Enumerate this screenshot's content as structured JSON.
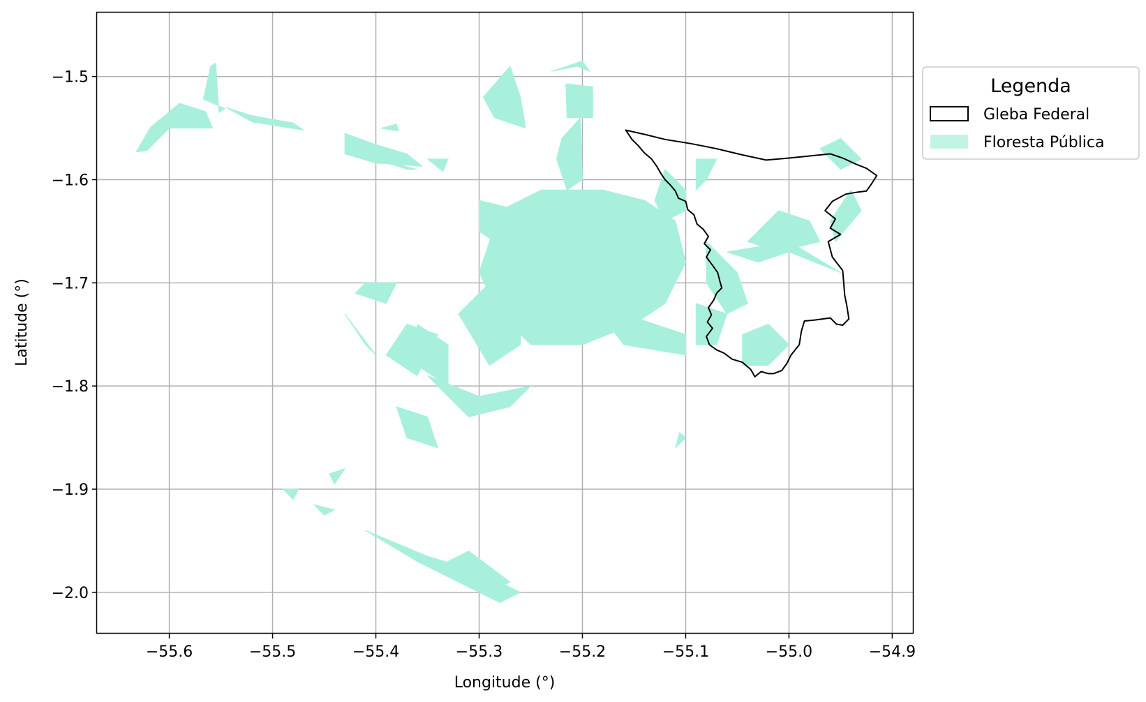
{
  "map": {
    "xlabel": "Longitude (°)",
    "ylabel": "Latitude (°)",
    "x_ticks": [
      -55.6,
      -55.5,
      -55.4,
      -55.3,
      -55.2,
      -55.1,
      -55.0,
      -54.9
    ],
    "y_ticks": [
      -1.5,
      -1.6,
      -1.7,
      -1.8,
      -1.9,
      -2.0
    ],
    "x_tick_labels": [
      "−55.6",
      "−55.5",
      "−55.4",
      "−55.3",
      "−55.2",
      "−55.1",
      "−55.0",
      "−54.9"
    ],
    "y_tick_labels": [
      "−1.5",
      "−1.6",
      "−1.7",
      "−1.8",
      "−1.9",
      "−2.0"
    ],
    "xlim": [
      -55.67,
      -54.88
    ],
    "ylim": [
      -2.04,
      -1.438
    ],
    "grid": true,
    "colors": {
      "forest": "#a8f0dc",
      "boundary": "#000000",
      "grid": "#b0b0b0"
    },
    "legend": {
      "title": "Legenda",
      "placement": "outside-right-top",
      "items": [
        {
          "label": "Gleba Federal",
          "type": "outline"
        },
        {
          "label": "Floresta Pública",
          "type": "fill"
        }
      ]
    },
    "layers": {
      "gleba_federal": [
        [
          -55.158,
          -1.552
        ],
        [
          -55.14,
          -1.556
        ],
        [
          -55.12,
          -1.561
        ],
        [
          -55.095,
          -1.565
        ],
        [
          -55.07,
          -1.57
        ],
        [
          -55.045,
          -1.576
        ],
        [
          -55.022,
          -1.581
        ],
        [
          -55.0,
          -1.579
        ],
        [
          -54.98,
          -1.577
        ],
        [
          -54.96,
          -1.575
        ],
        [
          -54.948,
          -1.579
        ],
        [
          -54.935,
          -1.585
        ],
        [
          -54.925,
          -1.589
        ],
        [
          -54.915,
          -1.596
        ],
        [
          -54.92,
          -1.604
        ],
        [
          -54.925,
          -1.611
        ],
        [
          -54.933,
          -1.612
        ],
        [
          -54.945,
          -1.614
        ],
        [
          -54.958,
          -1.621
        ],
        [
          -54.965,
          -1.63
        ],
        [
          -54.955,
          -1.638
        ],
        [
          -54.96,
          -1.647
        ],
        [
          -54.95,
          -1.653
        ],
        [
          -54.962,
          -1.66
        ],
        [
          -54.958,
          -1.675
        ],
        [
          -54.948,
          -1.688
        ],
        [
          -54.947,
          -1.7
        ],
        [
          -54.946,
          -1.712
        ],
        [
          -54.944,
          -1.722
        ],
        [
          -54.942,
          -1.735
        ],
        [
          -54.948,
          -1.741
        ],
        [
          -54.954,
          -1.74
        ],
        [
          -54.96,
          -1.734
        ],
        [
          -54.975,
          -1.736
        ],
        [
          -54.985,
          -1.737
        ],
        [
          -54.988,
          -1.747
        ],
        [
          -54.99,
          -1.76
        ],
        [
          -54.998,
          -1.77
        ],
        [
          -55.002,
          -1.778
        ],
        [
          -55.007,
          -1.785
        ],
        [
          -55.015,
          -1.788
        ],
        [
          -55.02,
          -1.788
        ],
        [
          -55.027,
          -1.786
        ],
        [
          -55.033,
          -1.791
        ],
        [
          -55.037,
          -1.784
        ],
        [
          -55.045,
          -1.777
        ],
        [
          -55.055,
          -1.774
        ],
        [
          -55.063,
          -1.768
        ],
        [
          -55.07,
          -1.765
        ],
        [
          -55.077,
          -1.76
        ],
        [
          -55.08,
          -1.752
        ],
        [
          -55.074,
          -1.744
        ],
        [
          -55.079,
          -1.738
        ],
        [
          -55.075,
          -1.731
        ],
        [
          -55.078,
          -1.724
        ],
        [
          -55.073,
          -1.717
        ],
        [
          -55.07,
          -1.71
        ],
        [
          -55.065,
          -1.705
        ],
        [
          -55.067,
          -1.698
        ],
        [
          -55.069,
          -1.69
        ],
        [
          -55.074,
          -1.683
        ],
        [
          -55.08,
          -1.675
        ],
        [
          -55.076,
          -1.668
        ],
        [
          -55.082,
          -1.662
        ],
        [
          -55.078,
          -1.655
        ],
        [
          -55.083,
          -1.648
        ],
        [
          -55.089,
          -1.643
        ],
        [
          -55.092,
          -1.634
        ],
        [
          -55.098,
          -1.629
        ],
        [
          -55.1,
          -1.621
        ],
        [
          -55.107,
          -1.618
        ],
        [
          -55.11,
          -1.611
        ],
        [
          -55.115,
          -1.605
        ],
        [
          -55.12,
          -1.6
        ],
        [
          -55.124,
          -1.594
        ],
        [
          -55.128,
          -1.587
        ],
        [
          -55.133,
          -1.58
        ],
        [
          -55.14,
          -1.574
        ],
        [
          -55.146,
          -1.567
        ],
        [
          -55.152,
          -1.561
        ],
        [
          -55.158,
          -1.552
        ]
      ],
      "floresta_publica": [
        [
          [
            -55.632,
            -1.573
          ],
          [
            -55.618,
            -1.549
          ],
          [
            -55.59,
            -1.526
          ],
          [
            -55.565,
            -1.534
          ],
          [
            -55.558,
            -1.55
          ],
          [
            -55.6,
            -1.55
          ],
          [
            -55.622,
            -1.572
          ]
        ],
        [
          [
            -55.567,
            -1.522
          ],
          [
            -55.56,
            -1.49
          ],
          [
            -55.555,
            -1.487
          ],
          [
            -55.552,
            -1.535
          ],
          [
            -55.546,
            -1.531
          ]
        ],
        [
          [
            -55.545,
            -1.53
          ],
          [
            -55.52,
            -1.538
          ],
          [
            -55.48,
            -1.545
          ],
          [
            -55.47,
            -1.552
          ],
          [
            -55.52,
            -1.544
          ]
        ],
        [
          [
            -55.43,
            -1.555
          ],
          [
            -55.4,
            -1.566
          ],
          [
            -55.37,
            -1.575
          ],
          [
            -55.355,
            -1.587
          ],
          [
            -55.4,
            -1.584
          ],
          [
            -55.43,
            -1.575
          ]
        ],
        [
          [
            -55.4,
            -1.58
          ],
          [
            -55.37,
            -1.59
          ],
          [
            -55.36,
            -1.59
          ]
        ],
        [
          [
            -55.296,
            -1.52
          ],
          [
            -55.27,
            -1.49
          ],
          [
            -55.26,
            -1.52
          ],
          [
            -55.255,
            -1.55
          ],
          [
            -55.285,
            -1.54
          ]
        ],
        [
          [
            -55.23,
            -1.495
          ],
          [
            -55.2,
            -1.485
          ],
          [
            -55.193,
            -1.495
          ],
          [
            -55.205,
            -1.49
          ]
        ],
        [
          [
            -55.216,
            -1.507
          ],
          [
            -55.19,
            -1.51
          ],
          [
            -55.19,
            -1.54
          ],
          [
            -55.215,
            -1.54
          ]
        ],
        [
          [
            -55.22,
            -1.56
          ],
          [
            -55.202,
            -1.54
          ],
          [
            -55.2,
            -1.6
          ],
          [
            -55.215,
            -1.61
          ],
          [
            -55.225,
            -1.58
          ]
        ],
        [
          [
            -55.28,
            -1.63
          ],
          [
            -55.24,
            -1.61
          ],
          [
            -55.18,
            -1.61
          ],
          [
            -55.14,
            -1.62
          ],
          [
            -55.11,
            -1.64
          ],
          [
            -55.1,
            -1.68
          ],
          [
            -55.12,
            -1.72
          ],
          [
            -55.15,
            -1.74
          ],
          [
            -55.2,
            -1.76
          ],
          [
            -55.25,
            -1.76
          ],
          [
            -55.28,
            -1.73
          ],
          [
            -55.3,
            -1.69
          ]
        ],
        [
          [
            -55.19,
            -1.72
          ],
          [
            -55.1,
            -1.75
          ],
          [
            -55.1,
            -1.77
          ],
          [
            -55.16,
            -1.76
          ]
        ],
        [
          [
            -55.3,
            -1.62
          ],
          [
            -55.26,
            -1.63
          ],
          [
            -55.24,
            -1.66
          ],
          [
            -55.27,
            -1.67
          ],
          [
            -55.3,
            -1.65
          ]
        ],
        [
          [
            -55.32,
            -1.73
          ],
          [
            -55.29,
            -1.7
          ],
          [
            -55.26,
            -1.72
          ],
          [
            -55.26,
            -1.76
          ],
          [
            -55.29,
            -1.78
          ]
        ],
        [
          [
            -55.35,
            -1.79
          ],
          [
            -55.3,
            -1.81
          ],
          [
            -55.25,
            -1.8
          ],
          [
            -55.27,
            -1.82
          ],
          [
            -55.31,
            -1.83
          ]
        ],
        [
          [
            -55.38,
            -1.82
          ],
          [
            -55.35,
            -1.83
          ],
          [
            -55.34,
            -1.86
          ],
          [
            -55.37,
            -1.85
          ]
        ],
        [
          [
            -55.36,
            -1.74
          ],
          [
            -55.33,
            -1.76
          ],
          [
            -55.33,
            -1.8
          ],
          [
            -55.36,
            -1.78
          ]
        ],
        [
          [
            -55.39,
            -1.77
          ],
          [
            -55.37,
            -1.74
          ],
          [
            -55.34,
            -1.75
          ],
          [
            -55.36,
            -1.79
          ]
        ],
        [
          [
            -55.42,
            -1.71
          ],
          [
            -55.39,
            -1.72
          ],
          [
            -55.38,
            -1.7
          ],
          [
            -55.41,
            -1.7
          ]
        ],
        [
          [
            -55.43,
            -1.73
          ],
          [
            -55.41,
            -1.76
          ],
          [
            -55.4,
            -1.77
          ]
        ],
        [
          [
            -55.08,
            -1.66
          ],
          [
            -55.05,
            -1.69
          ],
          [
            -55.04,
            -1.72
          ],
          [
            -55.06,
            -1.73
          ],
          [
            -55.08,
            -1.7
          ]
        ],
        [
          [
            -55.06,
            -1.67
          ],
          [
            -55.0,
            -1.66
          ],
          [
            -54.95,
            -1.69
          ],
          [
            -55.0,
            -1.67
          ],
          [
            -55.03,
            -1.68
          ]
        ],
        [
          [
            -55.04,
            -1.66
          ],
          [
            -55.01,
            -1.63
          ],
          [
            -54.98,
            -1.64
          ],
          [
            -54.97,
            -1.66
          ],
          [
            -55.01,
            -1.67
          ]
        ],
        [
          [
            -54.96,
            -1.64
          ],
          [
            -54.94,
            -1.61
          ],
          [
            -54.93,
            -1.63
          ],
          [
            -54.955,
            -1.66
          ]
        ],
        [
          [
            -55.045,
            -1.75
          ],
          [
            -55.02,
            -1.74
          ],
          [
            -55.0,
            -1.76
          ],
          [
            -55.02,
            -1.78
          ],
          [
            -55.045,
            -1.78
          ]
        ],
        [
          [
            -55.09,
            -1.58
          ],
          [
            -55.07,
            -1.58
          ],
          [
            -55.08,
            -1.6
          ],
          [
            -55.09,
            -1.61
          ]
        ],
        [
          [
            -55.12,
            -1.59
          ],
          [
            -55.1,
            -1.61
          ],
          [
            -55.1,
            -1.63
          ],
          [
            -55.12,
            -1.64
          ],
          [
            -55.13,
            -1.62
          ]
        ],
        [
          [
            -55.09,
            -1.72
          ],
          [
            -55.06,
            -1.73
          ],
          [
            -55.07,
            -1.76
          ],
          [
            -55.09,
            -1.76
          ]
        ],
        [
          [
            -54.97,
            -1.57
          ],
          [
            -54.95,
            -1.56
          ],
          [
            -54.93,
            -1.58
          ],
          [
            -54.95,
            -1.59
          ]
        ],
        [
          [
            -55.395,
            -1.55
          ],
          [
            -55.38,
            -1.546
          ],
          [
            -55.378,
            -1.553
          ]
        ],
        [
          [
            -55.35,
            -1.58
          ],
          [
            -55.335,
            -1.592
          ],
          [
            -55.33,
            -1.58
          ]
        ],
        [
          [
            -55.11,
            -1.86
          ],
          [
            -55.1,
            -1.85
          ],
          [
            -55.106,
            -1.845
          ]
        ],
        [
          [
            -55.445,
            -1.885
          ],
          [
            -55.43,
            -1.88
          ],
          [
            -55.44,
            -1.895
          ]
        ],
        [
          [
            -55.49,
            -1.9
          ],
          [
            -55.475,
            -1.9
          ],
          [
            -55.48,
            -1.91
          ]
        ],
        [
          [
            -55.46,
            -1.915
          ],
          [
            -55.45,
            -1.925
          ],
          [
            -55.44,
            -1.92
          ]
        ],
        [
          [
            -55.41,
            -1.94
          ],
          [
            -55.35,
            -1.965
          ],
          [
            -55.3,
            -1.98
          ],
          [
            -55.26,
            -2.0
          ],
          [
            -55.28,
            -2.01
          ],
          [
            -55.32,
            -1.99
          ],
          [
            -55.36,
            -1.97
          ]
        ],
        [
          [
            -55.31,
            -1.96
          ],
          [
            -55.27,
            -1.99
          ],
          [
            -55.29,
            -2.0
          ],
          [
            -55.33,
            -1.97
          ]
        ]
      ]
    }
  }
}
